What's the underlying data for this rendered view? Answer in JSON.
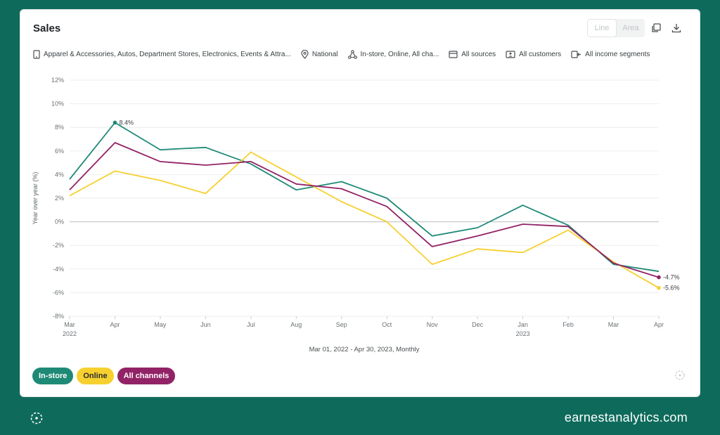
{
  "card": {
    "title": "Sales",
    "toggle": {
      "line_label": "Line",
      "area_label": "Area"
    },
    "filters": [
      {
        "icon": "building-icon",
        "label": "Apparel & Accessories, Autos, Department Stores, Electronics, Events & Attra..."
      },
      {
        "icon": "location-pin-icon",
        "label": "National"
      },
      {
        "icon": "channels-icon",
        "label": "In-store, Online, All cha..."
      },
      {
        "icon": "card-icon",
        "label": "All sources"
      },
      {
        "icon": "customer-id-icon",
        "label": "All customers"
      },
      {
        "icon": "income-icon",
        "label": "All income segments"
      }
    ]
  },
  "chart_data": {
    "type": "line",
    "ylabel": "Year over year (%)",
    "xlabel": "Mar 01, 2022 - Apr 30, 2023, Monthly",
    "ylim": [
      -8,
      12
    ],
    "yticks": [
      12,
      10,
      8,
      6,
      4,
      2,
      0,
      -2,
      -4,
      -6,
      -8
    ],
    "ytick_labels": [
      "12%",
      "10%",
      "8%",
      "6%",
      "4%",
      "2%",
      "0%",
      "-2%",
      "-4%",
      "-6%",
      "-8%"
    ],
    "categories": [
      "Mar",
      "Apr",
      "May",
      "Jun",
      "Jul",
      "Aug",
      "Sep",
      "Oct",
      "Nov",
      "Dec",
      "Jan",
      "Feb",
      "Mar",
      "Apr"
    ],
    "year_labels": [
      {
        "index": 0,
        "label": "2022"
      },
      {
        "index": 10,
        "label": "2023"
      }
    ],
    "grid": true,
    "series": [
      {
        "name": "In-store",
        "color": "#1e8a76",
        "values": [
          3.6,
          8.4,
          6.1,
          6.3,
          4.9,
          2.7,
          3.4,
          2.0,
          -1.2,
          -0.5,
          1.4,
          -0.3,
          -3.6,
          -4.2
        ]
      },
      {
        "name": "Online",
        "color": "#f6d02f",
        "values": [
          2.2,
          4.3,
          3.5,
          2.4,
          5.9,
          3.8,
          1.7,
          0.0,
          -3.6,
          -2.3,
          -2.6,
          -0.7,
          -3.4,
          -5.6
        ]
      },
      {
        "name": "All channels",
        "color": "#922266",
        "values": [
          2.7,
          6.7,
          5.1,
          4.8,
          5.1,
          3.2,
          2.8,
          1.3,
          -2.1,
          -1.2,
          -0.2,
          -0.4,
          -3.5,
          -4.7
        ]
      }
    ],
    "annotations": [
      {
        "series": 0,
        "index": 1,
        "label": "8.4%"
      },
      {
        "series": 2,
        "index": 13,
        "label": "-4.7%"
      },
      {
        "series": 1,
        "index": 13,
        "label": "-5.6%"
      }
    ]
  },
  "footer": {
    "url": "earnestanalytics.com"
  }
}
